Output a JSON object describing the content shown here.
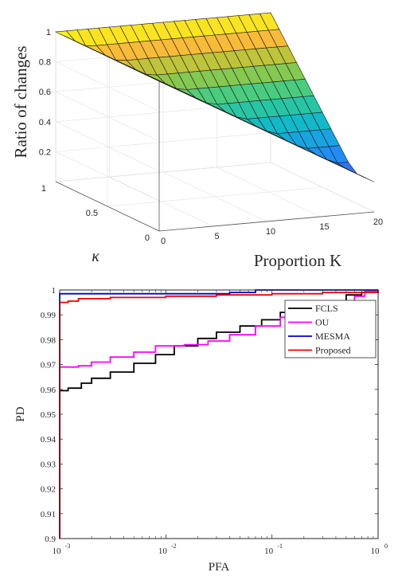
{
  "chart_data": [
    {
      "type": "surface",
      "zlabel": "Ratio of changes",
      "ylabel": "κ",
      "xlabel": "Proportion K",
      "x_ticks": [
        "0",
        "5",
        "10",
        "15",
        "20"
      ],
      "y_ticks": [
        "0",
        "0.5",
        "1"
      ],
      "z_ticks": [
        "0.2",
        "0.4",
        "0.6",
        "0.8",
        "1"
      ],
      "x_range": [
        0,
        20
      ],
      "y_range": [
        0,
        1
      ],
      "z_range": [
        0,
        1
      ],
      "colormap": "parula",
      "grid": true,
      "surface": "z = max(1 - 0.04·K, κ): flat at 1 where κ = 1, steep drop near κ = 0, approaching ≈0.2 at K = 20"
    },
    {
      "type": "line",
      "xlabel": "PFA",
      "ylabel": "PD",
      "xscale": "log",
      "xlim": [
        0.001,
        1
      ],
      "ylim": [
        0.9,
        1
      ],
      "x_tick_labels": [
        "10",
        "10",
        "10",
        "10"
      ],
      "x_tick_exponents": [
        "-3",
        "-2",
        "-1",
        "0"
      ],
      "y_tick_labels": [
        "0.9",
        "0.91",
        "0.92",
        "0.93",
        "0.94",
        "0.95",
        "0.96",
        "0.97",
        "0.98",
        "0.99",
        "1"
      ],
      "legend_position": "top-right",
      "series": [
        {
          "name": "FCLS",
          "color": "#000000",
          "x": [
            0.001,
            0.001,
            0.0012,
            0.0016,
            0.002,
            0.003,
            0.005,
            0.008,
            0.012,
            0.02,
            0.03,
            0.05,
            0.08,
            0.12,
            0.2,
            0.3,
            0.5,
            0.7,
            1
          ],
          "y": [
            0.9,
            0.9595,
            0.9605,
            0.9625,
            0.9645,
            0.967,
            0.9705,
            0.974,
            0.9775,
            0.9805,
            0.983,
            0.9855,
            0.988,
            0.991,
            0.9935,
            0.9955,
            0.998,
            0.999,
            1.0
          ]
        },
        {
          "name": "OU",
          "color": "#ff00ff",
          "x": [
            0.001,
            0.001,
            0.0015,
            0.002,
            0.003,
            0.005,
            0.008,
            0.015,
            0.025,
            0.04,
            0.07,
            0.12,
            0.2,
            0.3,
            0.45,
            0.6,
            0.75,
            1
          ],
          "y": [
            0.9,
            0.969,
            0.9695,
            0.971,
            0.973,
            0.975,
            0.9775,
            0.978,
            0.9795,
            0.982,
            0.9855,
            0.989,
            0.9925,
            0.994,
            0.9955,
            0.9975,
            0.9995,
            1.0
          ]
        },
        {
          "name": "MESMA",
          "color": "#0000cc",
          "x": [
            0.001,
            0.001,
            0.02,
            0.04,
            0.07,
            0.3,
            1
          ],
          "y": [
            0.9,
            0.9985,
            0.9985,
            0.999,
            1.0,
            1.0,
            1.0
          ]
        },
        {
          "name": "Proposed",
          "color": "#ee0000",
          "x": [
            0.001,
            0.001,
            0.0012,
            0.0015,
            0.003,
            0.01,
            0.03,
            0.1,
            0.3,
            1
          ],
          "y": [
            0.9,
            0.995,
            0.9955,
            0.9965,
            0.997,
            0.9975,
            0.998,
            0.9985,
            0.999,
            1.0
          ]
        }
      ]
    }
  ]
}
